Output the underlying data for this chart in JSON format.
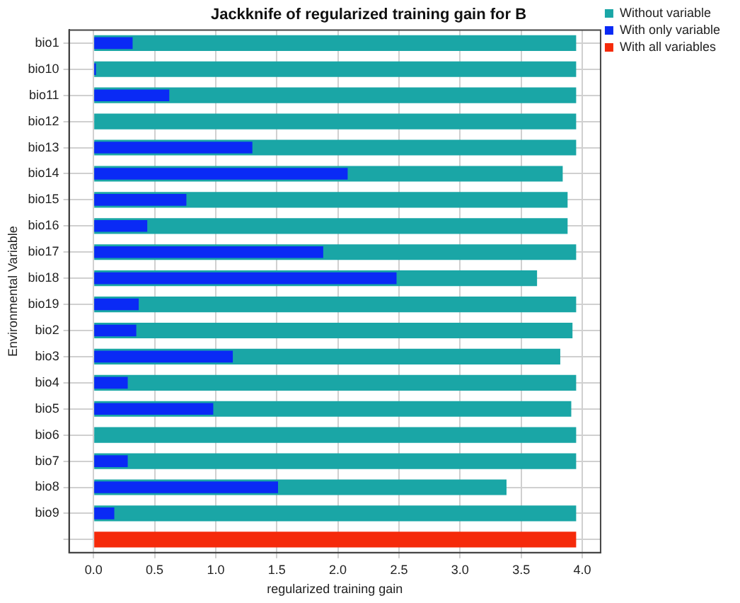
{
  "chart_data": {
    "type": "bar",
    "orientation": "horizontal",
    "title": "Jackknife of regularized training gain for B",
    "xlabel": "regularized training gain",
    "ylabel": "Environmental Variable",
    "categories": [
      "bio1",
      "bio10",
      "bio11",
      "bio12",
      "bio13",
      "bio14",
      "bio15",
      "bio16",
      "bio17",
      "bio18",
      "bio19",
      "bio2",
      "bio3",
      "bio4",
      "bio5",
      "bio6",
      "bio7",
      "bio8",
      "bio9",
      null
    ],
    "series": [
      {
        "name": "Without variable",
        "color": "#1aa6a6",
        "values": [
          3.95,
          3.95,
          3.95,
          3.95,
          3.95,
          3.84,
          3.88,
          3.88,
          3.95,
          3.63,
          3.95,
          3.92,
          3.82,
          3.95,
          3.91,
          3.95,
          3.95,
          3.38,
          3.95,
          null
        ]
      },
      {
        "name": "With only variable",
        "color": "#0a2af5",
        "values": [
          0.32,
          0.02,
          0.62,
          0,
          1.3,
          2.08,
          0.76,
          0.44,
          1.88,
          2.48,
          0.37,
          0.35,
          1.14,
          0.28,
          0.98,
          0,
          0.28,
          1.51,
          0.17,
          null
        ]
      },
      {
        "name": "With all variables",
        "color": "#f52a0a",
        "values": [
          null,
          null,
          null,
          null,
          null,
          null,
          null,
          null,
          null,
          null,
          null,
          null,
          null,
          null,
          null,
          null,
          null,
          null,
          null,
          3.95
        ]
      }
    ],
    "xlim": [
      -0.2,
      4.15
    ],
    "xticks": [
      {
        "value": 0,
        "label": "0.0"
      },
      {
        "value": 0.5,
        "label": "0.5"
      },
      {
        "value": 1,
        "label": "1.0"
      },
      {
        "value": 1.5,
        "label": "1.5"
      },
      {
        "value": 2,
        "label": "2.0"
      },
      {
        "value": 2.5,
        "label": "2.5"
      },
      {
        "value": 3,
        "label": "3.0"
      },
      {
        "value": 3.5,
        "label": "3.5"
      },
      {
        "value": 4,
        "label": "4.0"
      }
    ],
    "grid": true,
    "legend": "top right"
  }
}
